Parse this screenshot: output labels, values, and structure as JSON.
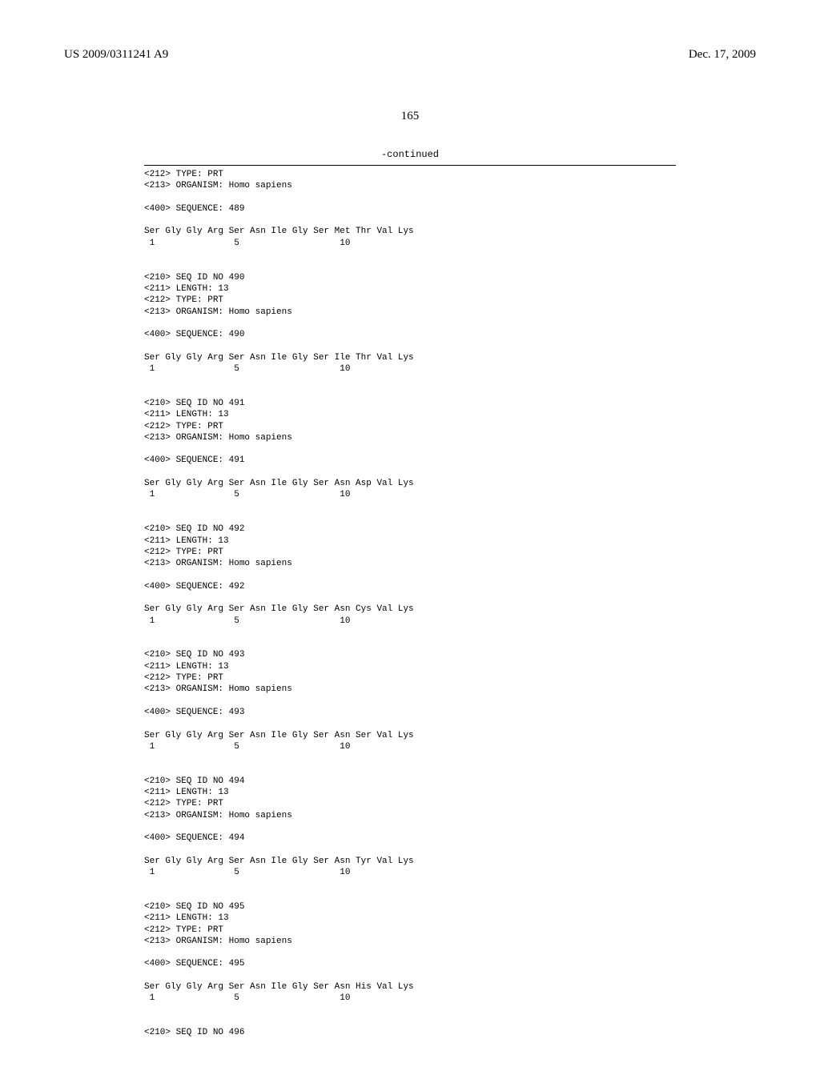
{
  "header": {
    "pub_number": "US 2009/0311241 A9",
    "date": "Dec. 17, 2009"
  },
  "page_number": "165",
  "continued_label": "-continued",
  "intro_lines": [
    "<212> TYPE: PRT",
    "<213> ORGANISM: Homo sapiens",
    "",
    "<400> SEQUENCE: 489",
    ""
  ],
  "intro_seq_line": "Ser Gly Gly Arg Ser Asn Ile Gly Ser Met Thr Val Lys",
  "intro_num_line": " 1               5                   10",
  "sequences": [
    {
      "id": "490",
      "residues": "Ser Gly Gly Arg Ser Asn Ile Gly Ser Ile Thr Val Lys"
    },
    {
      "id": "491",
      "residues": "Ser Gly Gly Arg Ser Asn Ile Gly Ser Asn Asp Val Lys"
    },
    {
      "id": "492",
      "residues": "Ser Gly Gly Arg Ser Asn Ile Gly Ser Asn Cys Val Lys"
    },
    {
      "id": "493",
      "residues": "Ser Gly Gly Arg Ser Asn Ile Gly Ser Asn Ser Val Lys"
    },
    {
      "id": "494",
      "residues": "Ser Gly Gly Arg Ser Asn Ile Gly Ser Asn Tyr Val Lys"
    },
    {
      "id": "495",
      "residues": "Ser Gly Gly Arg Ser Asn Ile Gly Ser Asn His Val Lys"
    }
  ],
  "block_template": {
    "line_seqid": "<210> SEQ ID NO ",
    "line_length": "<211> LENGTH: 13",
    "line_type": "<212> TYPE: PRT",
    "line_organism": "<213> ORGANISM: Homo sapiens",
    "line_sequence": "<400> SEQUENCE: ",
    "num_line": " 1               5                   10"
  },
  "trailing_line": "<210> SEQ ID NO 496",
  "colors": {
    "text": "#000000",
    "background": "#ffffff"
  },
  "fonts": {
    "header_family": "Times New Roman",
    "body_family": "Courier New",
    "header_size_pt": 11,
    "body_size_pt": 8
  }
}
